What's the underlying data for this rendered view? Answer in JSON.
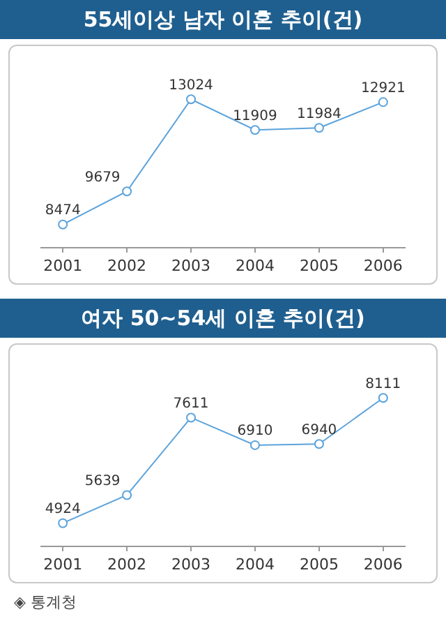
{
  "chart_data": [
    {
      "type": "line",
      "title": "55세이상 남자 이혼 추이(건)",
      "categories": [
        "2001",
        "2002",
        "2003",
        "2004",
        "2005",
        "2006"
      ],
      "series": [
        {
          "color": "#5ba3dc",
          "values": [
            8474,
            9679,
            13024,
            11909,
            11984,
            12921
          ]
        }
      ],
      "data_labels": true,
      "marker": "circle"
    },
    {
      "type": "line",
      "title": "여자 50~54세 이혼 추이(건)",
      "categories": [
        "2001",
        "2002",
        "2003",
        "2004",
        "2005",
        "2006"
      ],
      "series": [
        {
          "color": "#5ba3dc",
          "values": [
            4924,
            5639,
            7611,
            6910,
            6940,
            8111
          ]
        }
      ],
      "data_labels": true,
      "marker": "circle",
      "annotations": [
        "◈ 통계청"
      ]
    }
  ]
}
